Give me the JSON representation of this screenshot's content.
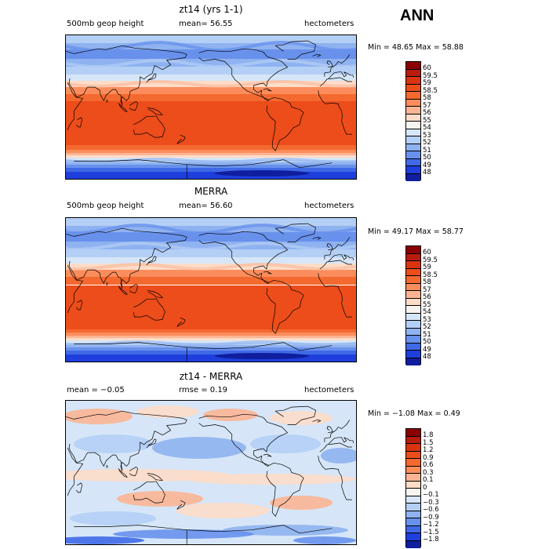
{
  "season": "ANN",
  "panels": [
    {
      "title": "zt14 (yrs 1-1)",
      "left_label": "500mb geop height",
      "mean_label": "mean=  56.55",
      "units": "hectometers",
      "minmax": "Min =  48.65 Max =  58.88",
      "kind": "field",
      "colorbar": {
        "labels": [
          "60",
          "59.5",
          "59",
          "58.5",
          "58",
          "57",
          "56",
          "55",
          "54",
          "53",
          "52",
          "51",
          "50",
          "49",
          "48"
        ],
        "colors": [
          "#8b0000",
          "#b81c0c",
          "#d9330f",
          "#ec4d1a",
          "#f4692f",
          "#fb8d5c",
          "#fcb594",
          "#fddcc8",
          "#f7f4f0",
          "#d6e6f8",
          "#b4cff5",
          "#8fb2f0",
          "#6891ec",
          "#4069e6",
          "#1e3fdc",
          "#0f1e9e"
        ]
      }
    },
    {
      "title": "MERRA",
      "left_label": "500mb geop height",
      "mean_label": "mean=  56.60",
      "units": "hectometers",
      "minmax": "Min =  49.17 Max =  58.77",
      "kind": "field",
      "colorbar": {
        "labels": [
          "60",
          "59.5",
          "59",
          "58.5",
          "58",
          "57",
          "56",
          "55",
          "54",
          "53",
          "52",
          "51",
          "50",
          "49",
          "48"
        ],
        "colors": [
          "#8b0000",
          "#b81c0c",
          "#d9330f",
          "#ec4d1a",
          "#f4692f",
          "#fb8d5c",
          "#fcb594",
          "#fddcc8",
          "#f7f4f0",
          "#d6e6f8",
          "#b4cff5",
          "#8fb2f0",
          "#6891ec",
          "#4069e6",
          "#1e3fdc",
          "#0f1e9e"
        ]
      }
    },
    {
      "title": "zt14 - MERRA",
      "left_label": "mean =  −0.05",
      "mean_label": "rmse =   0.19",
      "units": "hectometers",
      "minmax": "Min =  −1.08 Max =   0.49",
      "kind": "diff",
      "colorbar": {
        "labels": [
          "1.8",
          "1.5",
          "1.2",
          "0.9",
          "0.6",
          "0.3",
          "0.1",
          "0",
          "−0.1",
          "−0.3",
          "−0.6",
          "−0.9",
          "−1.2",
          "−1.5",
          "−1.8"
        ],
        "colors": [
          "#8b0000",
          "#b81c0c",
          "#d9330f",
          "#ec4d1a",
          "#f4692f",
          "#fb8d5c",
          "#fcb594",
          "#fddcc8",
          "#f7f4f0",
          "#d6e6f8",
          "#b4cff5",
          "#8fb2f0",
          "#6891ec",
          "#4069e6",
          "#1e3fdc",
          "#0f1e9e"
        ]
      }
    }
  ]
}
